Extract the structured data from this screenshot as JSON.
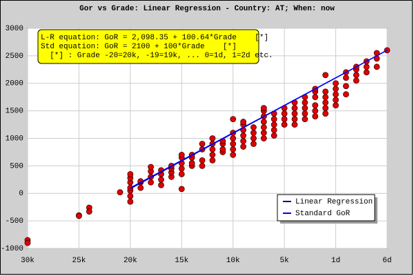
{
  "chart_data": {
    "type": "scatter",
    "title": "Gor vs Grade: Linear Regression - Country: AT; When: now",
    "annotation": [
      "L-R equation: GoR = 2,098.35 + 100.64*Grade    [*]",
      "Std equation: GoR = 2100 + 100*Grade    [*]",
      "  [*] : Grade -20=20k, -19=19k, ... 0=1d, 1=2d etc."
    ],
    "xlim": [
      -30,
      5
    ],
    "xticks": [
      {
        "value": -30,
        "label": "30k"
      },
      {
        "value": -25,
        "label": "25k"
      },
      {
        "value": -20,
        "label": "20k"
      },
      {
        "value": -15,
        "label": "15k"
      },
      {
        "value": -10,
        "label": "10k"
      },
      {
        "value": -5,
        "label": "5k"
      },
      {
        "value": 0,
        "label": "1d"
      },
      {
        "value": 5,
        "label": "6d"
      }
    ],
    "ylim": [
      -1000,
      3000
    ],
    "yticks": [
      -1000,
      -500,
      0,
      500,
      1000,
      1500,
      2000,
      2500,
      3000
    ],
    "grid": true,
    "legend": "lower right",
    "color": "#e00000",
    "x": [
      -30,
      -30,
      -25,
      -25,
      -24,
      -24,
      -21,
      -20,
      -20,
      -20,
      -20,
      -20,
      -20,
      -20,
      -19,
      -19,
      -19,
      -18,
      -18,
      -18,
      -18,
      -17,
      -17,
      -17,
      -17,
      -16,
      -16,
      -16,
      -16,
      -15,
      -15,
      -15,
      -15,
      -15,
      -15,
      -14,
      -14,
      -14,
      -14,
      -13,
      -13,
      -13,
      -13,
      -12,
      -12,
      -12,
      -12,
      -12,
      -11,
      -11,
      -11,
      -11,
      -10,
      -10,
      -10,
      -10,
      -10,
      -10,
      -9,
      -9,
      -9,
      -9,
      -9,
      -9,
      -8,
      -8,
      -8,
      -8,
      -7,
      -7,
      -7,
      -7,
      -7,
      -7,
      -7,
      -6,
      -6,
      -6,
      -6,
      -6,
      -5,
      -5,
      -5,
      -5,
      -4,
      -4,
      -4,
      -4,
      -4,
      -3,
      -3,
      -3,
      -3,
      -3,
      -2,
      -2,
      -2,
      -2,
      -2,
      -2,
      -1,
      -1,
      -1,
      -1,
      -1,
      -1,
      0,
      0,
      0,
      0,
      0,
      1,
      1,
      1,
      1,
      2,
      2,
      2,
      2,
      3,
      3,
      3,
      4,
      4,
      4,
      5
    ],
    "values": [
      -850,
      -900,
      -400,
      -410,
      -260,
      -330,
      20,
      -150,
      -50,
      50,
      100,
      200,
      280,
      350,
      100,
      200,
      220,
      200,
      300,
      400,
      480,
      150,
      250,
      350,
      420,
      300,
      380,
      450,
      500,
      80,
      350,
      450,
      550,
      650,
      700,
      500,
      550,
      650,
      700,
      500,
      600,
      800,
      900,
      600,
      700,
      800,
      900,
      1000,
      750,
      800,
      900,
      950,
      700,
      800,
      900,
      1000,
      1100,
      1350,
      850,
      950,
      1050,
      1150,
      1250,
      1300,
      900,
      1000,
      1100,
      1200,
      1000,
      1100,
      1200,
      1300,
      1400,
      1500,
      1550,
      1050,
      1150,
      1250,
      1350,
      1450,
      1250,
      1350,
      1450,
      1550,
      1250,
      1350,
      1450,
      1550,
      1650,
      1350,
      1450,
      1550,
      1650,
      1750,
      1400,
      1500,
      1600,
      1750,
      1850,
      1900,
      1450,
      1550,
      1650,
      1750,
      1850,
      2150,
      1600,
      1700,
      1800,
      1900,
      2000,
      1800,
      1950,
      2100,
      2200,
      2050,
      2150,
      2250,
      2300,
      2200,
      2300,
      2400,
      2300,
      2450,
      2550,
      2600
    ],
    "lines": [
      {
        "name": "Linear Regression",
        "color": "#00008b",
        "x": [
          -20,
          5
        ],
        "values": [
          85.55,
          2601.55
        ]
      },
      {
        "name": "Standard GoR",
        "color": "#0000ff",
        "x": [
          -20,
          5
        ],
        "values": [
          100,
          2600
        ]
      }
    ]
  }
}
